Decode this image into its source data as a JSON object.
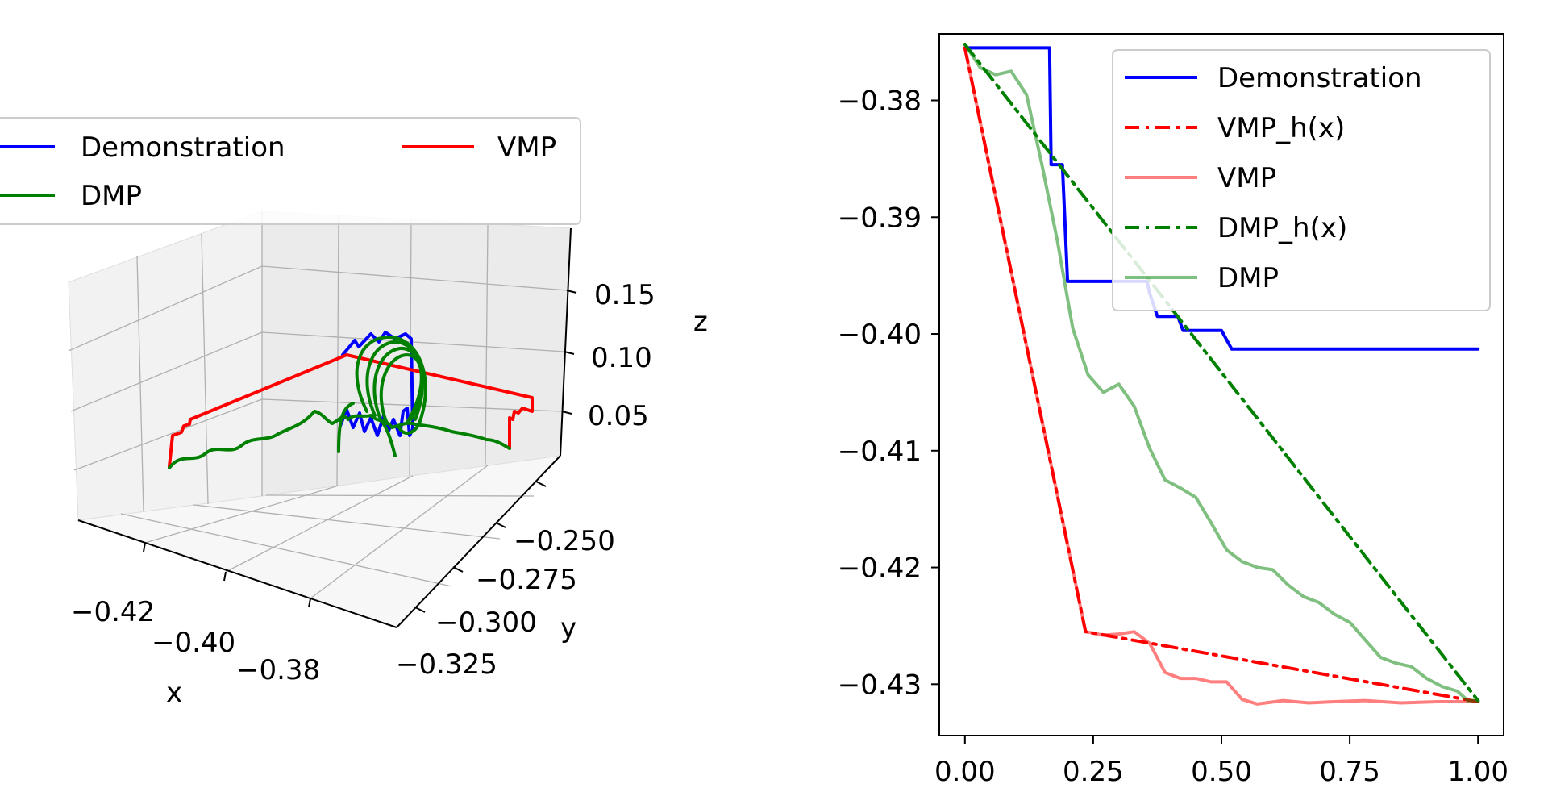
{
  "chart_data": [
    {
      "type": "line-3d",
      "title": "",
      "axes": {
        "x": {
          "label": "x",
          "ticks": [
            "−0.42",
            "−0.40",
            "−0.38"
          ]
        },
        "y": {
          "label": "y",
          "ticks": [
            "−0.250",
            "−0.275",
            "−0.300",
            "−0.325"
          ]
        },
        "z": {
          "label": "z",
          "ticks": [
            "0.15",
            "0.10",
            "0.05"
          ]
        }
      },
      "legend": {
        "placement": "top-left",
        "columns": 2,
        "entries": [
          {
            "name": "Demonstration",
            "color": "#0000ff"
          },
          {
            "name": "VMP",
            "color": "#ff0000"
          },
          {
            "name": "DMP",
            "color": "#008000"
          }
        ]
      },
      "grid": true
    },
    {
      "type": "line",
      "title": "",
      "xlabel": "",
      "ylabel": "",
      "xlim": [
        -0.05,
        1.05
      ],
      "ylim": [
        -0.4344,
        -0.3743
      ],
      "x_ticks": [
        {
          "value": 0.0,
          "label": "0.00"
        },
        {
          "value": 0.25,
          "label": "0.25"
        },
        {
          "value": 0.5,
          "label": "0.50"
        },
        {
          "value": 0.75,
          "label": "0.75"
        },
        {
          "value": 1.0,
          "label": "1.00"
        }
      ],
      "y_ticks": [
        {
          "value": -0.38,
          "label": "−0.38"
        },
        {
          "value": -0.39,
          "label": "−0.39"
        },
        {
          "value": -0.4,
          "label": "−0.40"
        },
        {
          "value": -0.41,
          "label": "−0.41"
        },
        {
          "value": -0.42,
          "label": "−0.42"
        },
        {
          "value": -0.43,
          "label": "−0.43"
        }
      ],
      "grid": false,
      "legend": {
        "placement": "top-right"
      },
      "series": [
        {
          "name": "Demonstration",
          "color": "#0000ff",
          "style": "solid",
          "opacity": 1,
          "x": [
            0.0,
            0.165,
            0.168,
            0.19,
            0.195,
            0.2,
            0.205,
            0.355,
            0.36,
            0.375,
            0.385,
            0.415,
            0.425,
            0.5,
            0.52,
            0.53,
            1.0
          ],
          "y": [
            -0.3755,
            -0.3755,
            -0.3855,
            -0.3855,
            -0.3905,
            -0.3955,
            -0.3955,
            -0.3955,
            -0.3965,
            -0.3985,
            -0.3985,
            -0.3985,
            -0.3997,
            -0.3997,
            -0.4013,
            -0.4013,
            -0.4013
          ]
        },
        {
          "name": "VMP_h(x)",
          "color": "#ff0000",
          "style": "dashdot",
          "opacity": 1,
          "x": [
            0.0,
            0.235,
            1.0
          ],
          "y": [
            -0.3755,
            -0.4255,
            -0.4315
          ]
        },
        {
          "name": "VMP",
          "color": "#ff0000",
          "style": "solid",
          "opacity": 0.5,
          "x": [
            0.0,
            0.08,
            0.16,
            0.235,
            0.27,
            0.3,
            0.33,
            0.36,
            0.39,
            0.42,
            0.45,
            0.48,
            0.51,
            0.54,
            0.57,
            0.62,
            0.67,
            0.72,
            0.78,
            0.85,
            0.92,
            1.0
          ],
          "y": [
            -0.3755,
            -0.3925,
            -0.4095,
            -0.4255,
            -0.4258,
            -0.4257,
            -0.4255,
            -0.4265,
            -0.429,
            -0.4295,
            -0.4295,
            -0.4298,
            -0.4298,
            -0.4313,
            -0.4317,
            -0.4314,
            -0.4316,
            -0.4315,
            -0.4314,
            -0.4316,
            -0.4315,
            -0.4315
          ]
        },
        {
          "name": "DMP_h(x)",
          "color": "#008000",
          "style": "dashdot",
          "opacity": 1,
          "x": [
            0.0,
            1.0
          ],
          "y": [
            -0.3752,
            -0.4314
          ]
        },
        {
          "name": "DMP",
          "color": "#008000",
          "style": "solid",
          "opacity": 0.5,
          "x": [
            0.0,
            0.03,
            0.06,
            0.09,
            0.12,
            0.15,
            0.18,
            0.21,
            0.24,
            0.27,
            0.3,
            0.33,
            0.36,
            0.39,
            0.42,
            0.45,
            0.48,
            0.51,
            0.54,
            0.57,
            0.6,
            0.63,
            0.66,
            0.69,
            0.72,
            0.75,
            0.78,
            0.81,
            0.84,
            0.87,
            0.9,
            0.93,
            0.96,
            0.98,
            1.0
          ],
          "y": [
            -0.3752,
            -0.3772,
            -0.3778,
            -0.3775,
            -0.3795,
            -0.3855,
            -0.392,
            -0.3995,
            -0.4035,
            -0.405,
            -0.4043,
            -0.4062,
            -0.4098,
            -0.4125,
            -0.4132,
            -0.414,
            -0.4162,
            -0.4185,
            -0.4195,
            -0.42,
            -0.4202,
            -0.4215,
            -0.4225,
            -0.423,
            -0.424,
            -0.4247,
            -0.4262,
            -0.4277,
            -0.4282,
            -0.4285,
            -0.4295,
            -0.4302,
            -0.4306,
            -0.4314,
            -0.4314
          ]
        }
      ]
    }
  ]
}
